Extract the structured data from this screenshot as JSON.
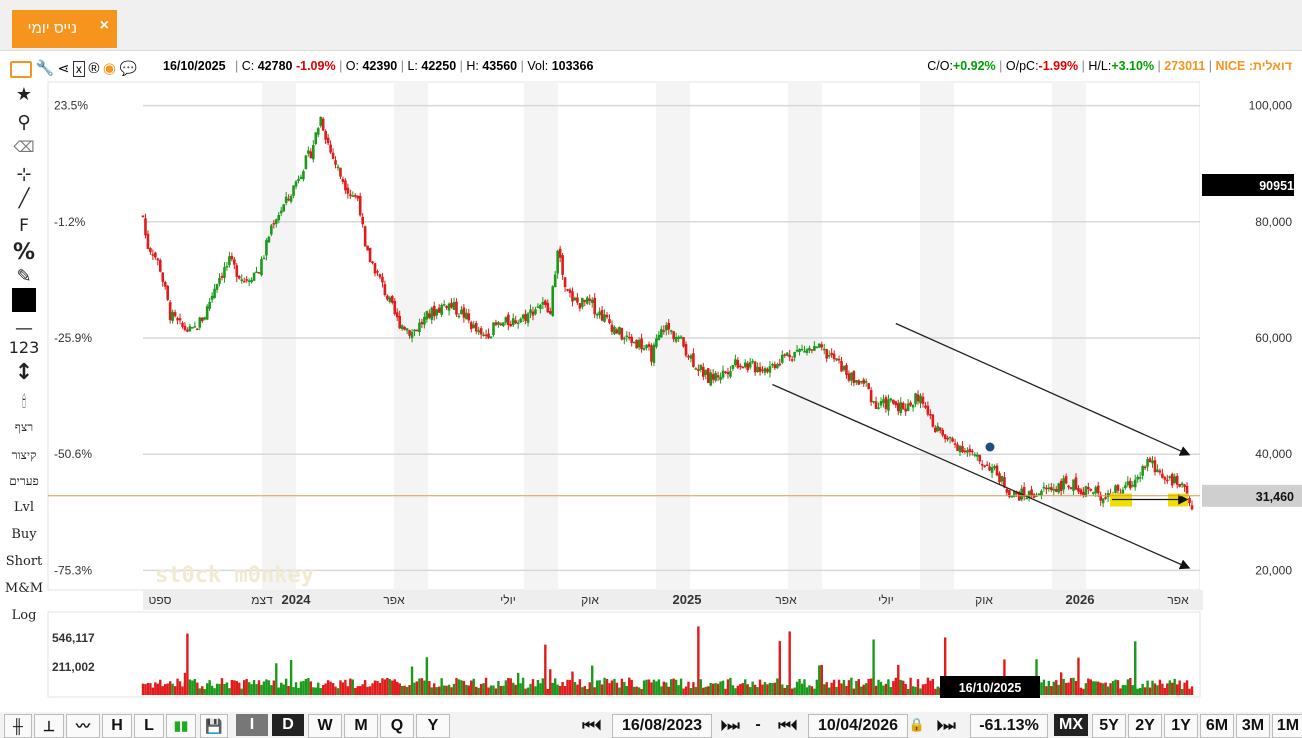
{
  "tab": {
    "label": "נייס יומי",
    "close": "×"
  },
  "infobar": {
    "date": "16/10/2025",
    "close_label": "C:",
    "close": "42780",
    "change": "-1.09%",
    "open_label": "O:",
    "open": "42390",
    "low_label": "L:",
    "low": "42250",
    "high_label": "H:",
    "high": "43560",
    "vol_label": "Vol:",
    "vol": "103366",
    "co_label": "C/O:",
    "co": "+0.92%",
    "opc_label": "O/pC:",
    "opc": "-1.99%",
    "hl_label": "H/L:",
    "hl": "+3.10%",
    "ticker_code": "273011",
    "ticker_name": "NICE :דואלית"
  },
  "sidebar": {
    "items": [
      "★",
      "🔍",
      "⌫",
      "⊹",
      "╱",
      "F",
      "%",
      "✎",
      "■",
      "—",
      "123",
      "↕",
      "🕯",
      "רצף",
      "קיצור",
      "פערים",
      "Lvl",
      "Buy",
      "Short",
      "M&M",
      "Log"
    ]
  },
  "chart_data": {
    "type": "candlestick",
    "x_tick_labels": [
      "ספט",
      "דצמ",
      "2024",
      "אפר",
      "יולי",
      "אוק",
      "2025",
      "אפר",
      "יולי",
      "אוק",
      "2026",
      "אפר"
    ],
    "y_right_ticks": [
      "100,000",
      "80,000",
      "60,000",
      "40,000",
      "20,000"
    ],
    "y_left_ticks": [
      "23.5%",
      "-1.2%",
      "-25.9%",
      "-50.6%",
      "-75.3%"
    ],
    "ylim": [
      18000,
      102000
    ],
    "price_path": [
      [
        0,
        81000
      ],
      [
        3,
        76000
      ],
      [
        8,
        75000
      ],
      [
        14,
        72000
      ],
      [
        22,
        64000
      ],
      [
        30,
        62000
      ],
      [
        40,
        61000
      ],
      [
        50,
        64000
      ],
      [
        60,
        70000
      ],
      [
        70,
        73000
      ],
      [
        82,
        70000
      ],
      [
        95,
        72000
      ],
      [
        105,
        80000
      ],
      [
        118,
        84000
      ],
      [
        126,
        88000
      ],
      [
        136,
        92000
      ],
      [
        144,
        98000
      ],
      [
        152,
        92000
      ],
      [
        160,
        88000
      ],
      [
        168,
        85000
      ],
      [
        175,
        84000
      ],
      [
        180,
        75000
      ],
      [
        188,
        72000
      ],
      [
        196,
        68000
      ],
      [
        206,
        63000
      ],
      [
        218,
        61000
      ],
      [
        232,
        64000
      ],
      [
        246,
        66000
      ],
      [
        260,
        64000
      ],
      [
        274,
        60000
      ],
      [
        286,
        62000
      ],
      [
        300,
        63000
      ],
      [
        312,
        64000
      ],
      [
        322,
        66000
      ],
      [
        330,
        64000
      ],
      [
        336,
        76000
      ],
      [
        342,
        68000
      ],
      [
        352,
        66000
      ],
      [
        362,
        66000
      ],
      [
        376,
        63000
      ],
      [
        390,
        60000
      ],
      [
        403,
        59000
      ],
      [
        412,
        57000
      ],
      [
        422,
        62000
      ],
      [
        434,
        60000
      ],
      [
        446,
        56000
      ],
      [
        458,
        53000
      ],
      [
        470,
        54000
      ],
      [
        480,
        56000
      ],
      [
        494,
        55000
      ],
      [
        508,
        55000
      ],
      [
        520,
        57000
      ],
      [
        535,
        58000
      ],
      [
        548,
        58000
      ],
      [
        562,
        56000
      ],
      [
        574,
        53000
      ],
      [
        586,
        52000
      ],
      [
        594,
        48000
      ],
      [
        606,
        49000
      ],
      [
        618,
        48000
      ],
      [
        628,
        50000
      ],
      [
        638,
        46000
      ],
      [
        648,
        43000
      ],
      [
        656,
        42000
      ],
      [
        666,
        41000
      ],
      [
        676,
        39000
      ],
      [
        686,
        38000
      ],
      [
        694,
        36000
      ],
      [
        704,
        33000
      ],
      [
        718,
        33000
      ],
      [
        734,
        34000
      ],
      [
        748,
        35000
      ],
      [
        762,
        34000
      ],
      [
        776,
        33000
      ],
      [
        786,
        33500
      ],
      [
        796,
        34000
      ],
      [
        806,
        36000
      ],
      [
        814,
        39000
      ],
      [
        822,
        37000
      ],
      [
        832,
        36000
      ],
      [
        842,
        34000
      ],
      [
        850,
        31460
      ]
    ],
    "dates": {
      "start": "16/08/2023",
      "end": "10/04/2026"
    },
    "last_price_label": "31,460",
    "marker_price_label": "90951",
    "hover_date": "16/10/2025",
    "volume_ticks": [
      "546,117",
      "211,002"
    ],
    "watermark": "st0ck m0nkey",
    "channel": {
      "upper": {
        "start": [
          610,
          62500
        ],
        "end": [
          940,
          40000
        ]
      },
      "lower": {
        "start": [
          510,
          52000
        ],
        "end": [
          940,
          20500
        ]
      },
      "support_level": 32200
    }
  },
  "bottombar": {
    "chart_types": [
      "╫",
      "⊥",
      "〰",
      "H",
      "L",
      "▮▮"
    ],
    "save": "💾",
    "periods": [
      "I",
      "D",
      "W",
      "M",
      "Q",
      "Y"
    ],
    "nav_back": "⏮⏴",
    "nav_fwd": "⏵⏭",
    "start_date": "16/08/2023",
    "dash": "-",
    "end_date": "10/04/2026",
    "lock": "🔒",
    "change": "-61.13%",
    "ranges": [
      "MX",
      "5Y",
      "2Y",
      "1Y",
      "6M",
      "3M",
      "1M"
    ]
  }
}
